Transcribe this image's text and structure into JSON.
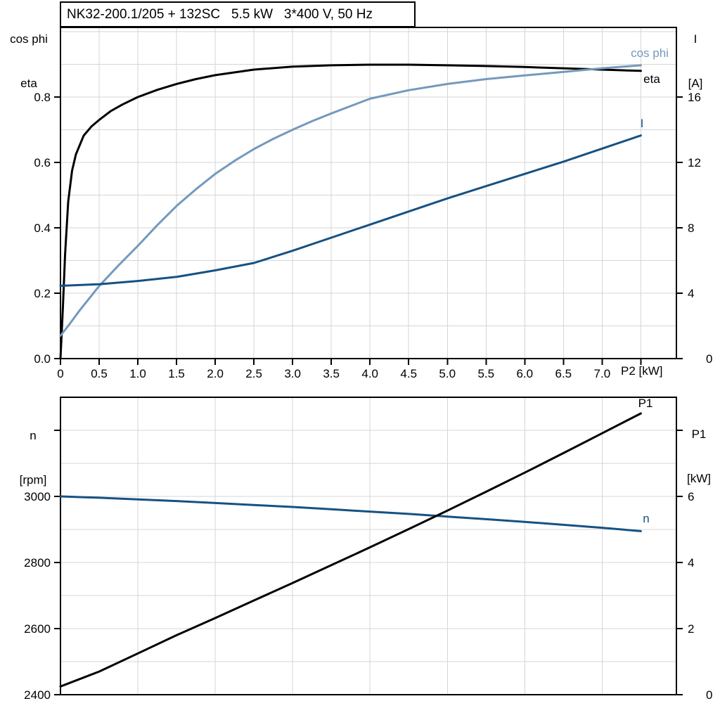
{
  "colors": {
    "black": "#000000",
    "light_blue": "#7499bd",
    "dark_blue": "#165182",
    "grid": "#d6d6d6",
    "frame": "#000000"
  },
  "chart_data": [
    {
      "type": "line",
      "title": "NK32-200.1/205 + 132SC   5.5 kW   3*400 V, 50 Hz",
      "x_axis": {
        "label": "P2 [kW]",
        "min": 0,
        "max": 7.96,
        "gridline_step": 0.5,
        "ticks": [
          0,
          0.5,
          1.0,
          1.5,
          2.0,
          2.5,
          3.0,
          3.5,
          4.0,
          4.5,
          5.0,
          5.5,
          6.0,
          6.5,
          7.0,
          7.5
        ],
        "tick_labels": [
          "0",
          "0.5",
          "1.0",
          "1.5",
          "2.0",
          "2.5",
          "3.0",
          "3.5",
          "4.0",
          "4.5",
          "5.0",
          "5.5",
          "6.0",
          "6.5",
          "7.0",
          ""
        ]
      },
      "y_left": {
        "label_lines": [
          "cos phi",
          "eta"
        ],
        "min": 0,
        "max": 1.013,
        "gridline_step": 0.1,
        "ticks": [
          0,
          0.2,
          0.4,
          0.6,
          0.8
        ],
        "tick_labels": [
          "0.0",
          "0.2",
          "0.4",
          "0.6",
          "0.8"
        ]
      },
      "y_right": {
        "label_lines": [
          "I",
          "[A]"
        ],
        "min": 0,
        "max": 20.26,
        "ticks": [
          0,
          4,
          8,
          12,
          16
        ],
        "tick_labels": [
          "0",
          "4",
          "8",
          "12",
          "16"
        ]
      },
      "series": [
        {
          "name": "eta",
          "axis": "left",
          "color": "#000000",
          "x": [
            0,
            0.03,
            0.06,
            0.1,
            0.15,
            0.2,
            0.3,
            0.4,
            0.5,
            0.65,
            0.8,
            1.0,
            1.25,
            1.5,
            1.75,
            2.0,
            2.5,
            3.0,
            3.5,
            4.0,
            4.5,
            5.0,
            5.5,
            6.0,
            6.5,
            7.0,
            7.5
          ],
          "y": [
            0,
            0.15,
            0.32,
            0.48,
            0.575,
            0.625,
            0.682,
            0.71,
            0.73,
            0.757,
            0.777,
            0.8,
            0.822,
            0.84,
            0.855,
            0.867,
            0.884,
            0.893,
            0.897,
            0.899,
            0.899,
            0.897,
            0.895,
            0.892,
            0.888,
            0.884,
            0.88
          ]
        },
        {
          "name": "cos phi",
          "axis": "left",
          "color": "#7499bd",
          "x": [
            0,
            0.1,
            0.25,
            0.5,
            0.75,
            1.0,
            1.25,
            1.5,
            1.75,
            2.0,
            2.25,
            2.5,
            2.75,
            3.0,
            3.25,
            3.5,
            4.0,
            4.5,
            5.0,
            5.5,
            6.0,
            6.5,
            7.0,
            7.5
          ],
          "y": [
            0.07,
            0.1,
            0.148,
            0.222,
            0.285,
            0.345,
            0.408,
            0.467,
            0.518,
            0.565,
            0.605,
            0.641,
            0.672,
            0.7,
            0.726,
            0.75,
            0.795,
            0.821,
            0.84,
            0.855,
            0.866,
            0.877,
            0.888,
            0.897
          ]
        },
        {
          "name": "I",
          "axis": "right",
          "color": "#165182",
          "x": [
            0,
            0.5,
            1.0,
            1.5,
            2.0,
            2.5,
            3.0,
            3.5,
            4.0,
            4.5,
            5.0,
            5.5,
            6.0,
            6.5,
            7.0,
            7.5
          ],
          "y": [
            4.45,
            4.55,
            4.75,
            5.0,
            5.4,
            5.85,
            6.6,
            7.4,
            8.2,
            9.0,
            9.8,
            10.55,
            11.3,
            12.05,
            12.85,
            13.65
          ]
        }
      ]
    },
    {
      "type": "line",
      "title": "",
      "x_axis": {
        "label": "",
        "min": 0,
        "max": 7.96,
        "gridline_step": 1.0,
        "ticks": [],
        "tick_labels": []
      },
      "y_left": {
        "label_lines": [
          "n",
          "[rpm]"
        ],
        "min": 2400,
        "max": 3300,
        "gridline_step": 100,
        "ticks": [
          2400,
          2600,
          2800,
          3000,
          3200
        ],
        "tick_labels": [
          "2400",
          "2600",
          "2800",
          "3000",
          ""
        ]
      },
      "y_right": {
        "label_lines": [
          "P1",
          "[kW]"
        ],
        "min": 0,
        "max": 9,
        "ticks": [
          0,
          2,
          4,
          6,
          8
        ],
        "tick_labels": [
          "0",
          "2",
          "4",
          "6",
          ""
        ]
      },
      "series": [
        {
          "name": "n",
          "axis": "left",
          "color": "#165182",
          "x": [
            0,
            0.5,
            1.0,
            1.5,
            2.0,
            2.5,
            3.0,
            3.5,
            4.0,
            4.5,
            5.0,
            5.5,
            6.0,
            6.5,
            7.0,
            7.5
          ],
          "y": [
            3000,
            2996,
            2991,
            2986,
            2980,
            2974,
            2968,
            2961,
            2954,
            2947,
            2939,
            2931,
            2923,
            2914,
            2905,
            2895
          ]
        },
        {
          "name": "P1",
          "axis": "right",
          "color": "#000000",
          "x": [
            0,
            0.5,
            1.0,
            1.5,
            2.0,
            2.5,
            3.0,
            3.5,
            4.0,
            4.5,
            5.0,
            5.5,
            6.0,
            6.5,
            7.0,
            7.5
          ],
          "y": [
            0.25,
            0.7,
            1.25,
            1.8,
            2.32,
            2.85,
            3.38,
            3.92,
            4.46,
            5.01,
            5.57,
            6.14,
            6.72,
            7.31,
            7.91,
            8.51
          ]
        }
      ]
    }
  ]
}
